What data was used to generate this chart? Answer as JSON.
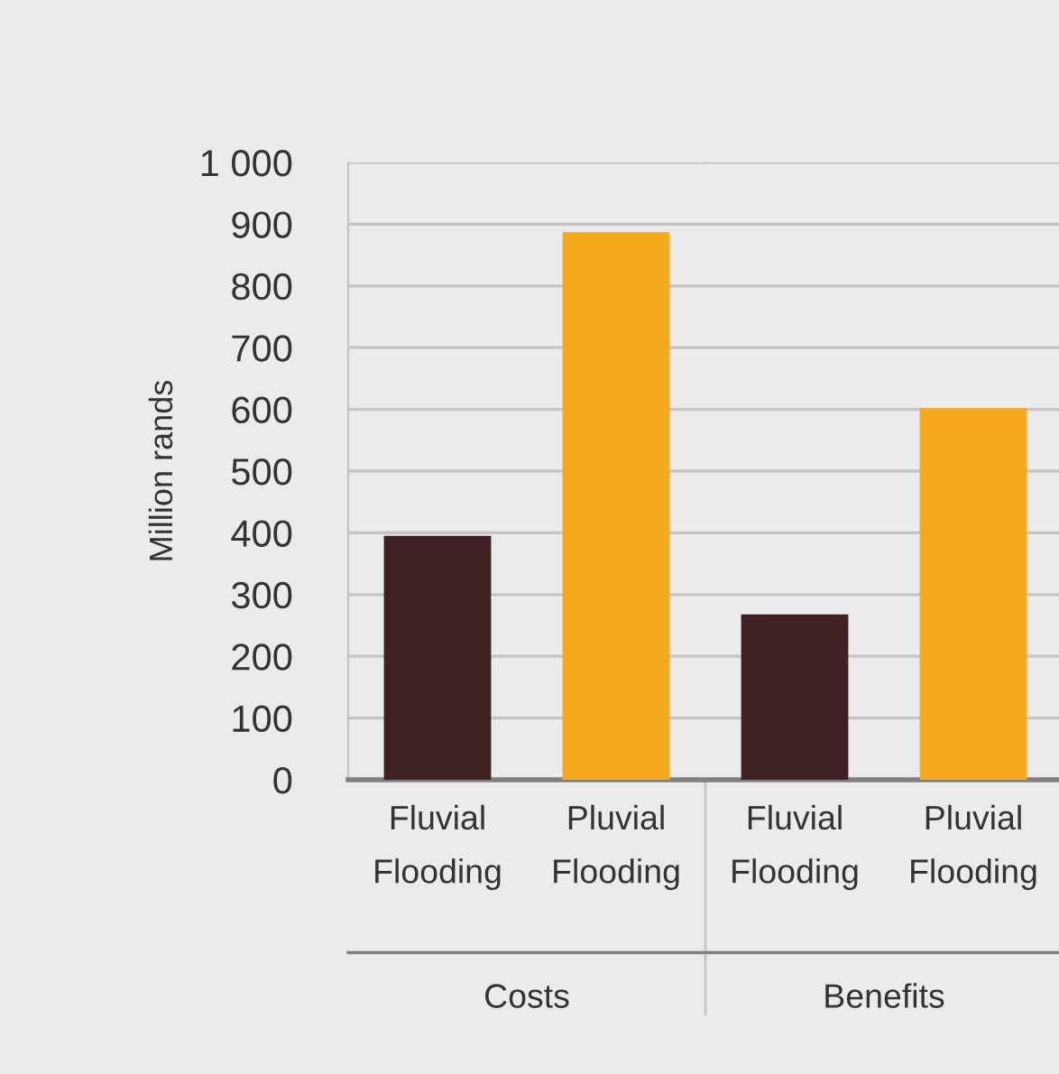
{
  "chart_data": {
    "type": "bar",
    "ylabel": "Million rands",
    "categories": [
      "Fluvial\nFlooding",
      "Pluvial\nFlooding",
      "Fluvial\nFlooding",
      "Pluvial\nFlooding"
    ],
    "values": [
      395,
      887,
      268,
      602
    ],
    "colors": [
      "#3f2123",
      "#f5a91d",
      "#3f2123",
      "#f5a91d"
    ],
    "ylim": [
      0,
      1000
    ],
    "yticks": [
      0,
      100,
      200,
      300,
      400,
      500,
      600,
      700,
      800,
      900,
      {
        "value": 1000,
        "label": "1 000"
      }
    ],
    "grid": "y",
    "annotations": [
      "Costs",
      "Benefits"
    ]
  }
}
